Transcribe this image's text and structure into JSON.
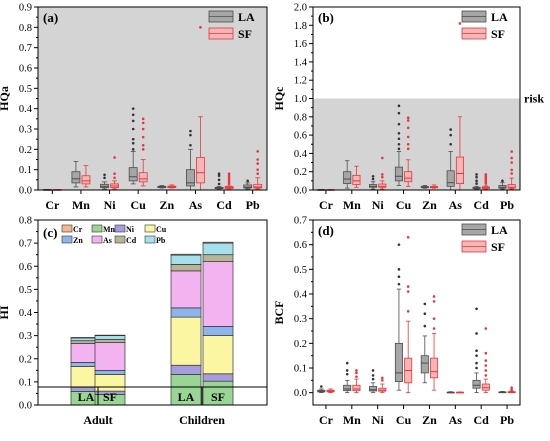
{
  "colors": {
    "la_fill": "#a6a6a6",
    "la_edge": "#4d4d4d",
    "sf_fill": "#f4b6b6",
    "sf_edge": "#e8363a",
    "risk_bg": "#d4d4d4",
    "marker_la": "#333333",
    "marker_sf": "#e8363a"
  },
  "chart_data": [
    {
      "id": "a",
      "type": "box",
      "panel_label": "(a)",
      "ylabel": "HQa",
      "ylim": [
        0,
        0.9
      ],
      "yticks": [
        "0.0",
        "0.1",
        "0.2",
        "0.3",
        "0.4",
        "0.5",
        "0.6",
        "0.7",
        "0.8",
        "0.9"
      ],
      "categories": [
        "Cr",
        "Mn",
        "Ni",
        "Cu",
        "Zn",
        "As",
        "Cd",
        "Pb"
      ],
      "shaded_background": true,
      "legend": [
        "LA",
        "SF"
      ],
      "series": [
        {
          "name": "LA",
          "boxes": [
            {
              "min": 0.0,
              "q1": 0.0,
              "med": 0.001,
              "q3": 0.002,
              "max": 0.003,
              "outliers": []
            },
            {
              "min": 0.015,
              "q1": 0.035,
              "med": 0.055,
              "q3": 0.09,
              "max": 0.14,
              "outliers": []
            },
            {
              "min": 0.005,
              "q1": 0.012,
              "med": 0.018,
              "q3": 0.028,
              "max": 0.04,
              "outliers": [
                0.06,
                0.075
              ]
            },
            {
              "min": 0.03,
              "q1": 0.045,
              "med": 0.065,
              "q3": 0.11,
              "max": 0.19,
              "outliers": [
                0.2,
                0.23,
                0.25,
                0.3,
                0.34,
                0.37,
                0.4
              ]
            },
            {
              "min": 0.01,
              "q1": 0.012,
              "med": 0.015,
              "q3": 0.018,
              "max": 0.022,
              "outliers": []
            },
            {
              "min": 0.0,
              "q1": 0.02,
              "med": 0.035,
              "q3": 0.1,
              "max": 0.2,
              "outliers": [
                0.22,
                0.27,
                0.29
              ]
            },
            {
              "min": 0.005,
              "q1": 0.007,
              "med": 0.01,
              "q3": 0.013,
              "max": 0.018,
              "outliers": [
                0.03,
                0.05,
                0.07,
                0.08
              ]
            },
            {
              "min": 0.005,
              "q1": 0.01,
              "med": 0.014,
              "q3": 0.025,
              "max": 0.035,
              "outliers": [
                0.045
              ]
            }
          ]
        },
        {
          "name": "SF",
          "boxes": [
            {
              "min": 0.0,
              "q1": 0.0,
              "med": 0.001,
              "q3": 0.002,
              "max": 0.003,
              "outliers": []
            },
            {
              "min": 0.015,
              "q1": 0.03,
              "med": 0.045,
              "q3": 0.07,
              "max": 0.12,
              "outliers": []
            },
            {
              "min": 0.005,
              "q1": 0.012,
              "med": 0.02,
              "q3": 0.03,
              "max": 0.045,
              "outliers": [
                0.06,
                0.08,
                0.16
              ]
            },
            {
              "min": 0.02,
              "q1": 0.04,
              "med": 0.055,
              "q3": 0.085,
              "max": 0.15,
              "outliers": [
                0.2,
                0.22,
                0.26,
                0.3,
                0.33,
                0.35
              ]
            },
            {
              "min": 0.01,
              "q1": 0.012,
              "med": 0.015,
              "q3": 0.019,
              "max": 0.025,
              "outliers": []
            },
            {
              "min": 0.0,
              "q1": 0.035,
              "med": 0.085,
              "q3": 0.16,
              "max": 0.36,
              "outliers": [
                0.8
              ]
            },
            {
              "min": 0.005,
              "q1": 0.007,
              "med": 0.012,
              "q3": 0.017,
              "max": 0.02,
              "outliers": [
                0.03,
                0.04,
                0.05,
                0.06,
                0.07,
                0.08
              ]
            },
            {
              "min": 0.005,
              "q1": 0.01,
              "med": 0.015,
              "q3": 0.028,
              "max": 0.06,
              "outliers": [
                0.08,
                0.1,
                0.13,
                0.15,
                0.19
              ]
            }
          ]
        }
      ]
    },
    {
      "id": "b",
      "type": "box",
      "panel_label": "(b)",
      "ylabel": "HQc",
      "ylim": [
        0,
        2.0
      ],
      "yticks": [
        "0.0",
        "0.2",
        "0.4",
        "0.6",
        "0.8",
        "1.0",
        "1.2",
        "1.4",
        "1.6",
        "1.8",
        "2.0"
      ],
      "categories": [
        "Cr",
        "Mn",
        "Ni",
        "Cu",
        "Zn",
        "As",
        "Cd",
        "Pb"
      ],
      "shaded_band": [
        0,
        1.0
      ],
      "risk_label": "risk",
      "legend": [
        "LA",
        "SF"
      ],
      "series": [
        {
          "name": "LA",
          "boxes": [
            {
              "min": 0.0,
              "q1": 0.0,
              "med": 0.002,
              "q3": 0.004,
              "max": 0.006,
              "outliers": []
            },
            {
              "min": 0.02,
              "q1": 0.07,
              "med": 0.12,
              "q3": 0.2,
              "max": 0.32,
              "outliers": []
            },
            {
              "min": 0.01,
              "q1": 0.03,
              "med": 0.04,
              "q3": 0.06,
              "max": 0.09,
              "outliers": [
                0.12,
                0.15
              ]
            },
            {
              "min": 0.05,
              "q1": 0.1,
              "med": 0.15,
              "q3": 0.25,
              "max": 0.42,
              "outliers": [
                0.45,
                0.5,
                0.56,
                0.62,
                0.72,
                0.84,
                0.92
              ]
            },
            {
              "min": 0.02,
              "q1": 0.025,
              "med": 0.03,
              "q3": 0.04,
              "max": 0.05,
              "outliers": []
            },
            {
              "min": 0.0,
              "q1": 0.04,
              "med": 0.08,
              "q3": 0.21,
              "max": 0.42,
              "outliers": [
                0.5,
                0.6,
                0.66
              ]
            },
            {
              "min": 0.01,
              "q1": 0.015,
              "med": 0.02,
              "q3": 0.03,
              "max": 0.04,
              "outliers": [
                0.07,
                0.1,
                0.14,
                0.17
              ]
            },
            {
              "min": 0.01,
              "q1": 0.02,
              "med": 0.03,
              "q3": 0.05,
              "max": 0.08,
              "outliers": [
                0.1
              ]
            }
          ]
        },
        {
          "name": "SF",
          "boxes": [
            {
              "min": 0.0,
              "q1": 0.0,
              "med": 0.002,
              "q3": 0.004,
              "max": 0.006,
              "outliers": []
            },
            {
              "min": 0.03,
              "q1": 0.06,
              "med": 0.1,
              "q3": 0.16,
              "max": 0.26,
              "outliers": []
            },
            {
              "min": 0.01,
              "q1": 0.03,
              "med": 0.04,
              "q3": 0.065,
              "max": 0.1,
              "outliers": [
                0.14,
                0.17,
                0.35
              ]
            },
            {
              "min": 0.04,
              "q1": 0.09,
              "med": 0.13,
              "q3": 0.2,
              "max": 0.33,
              "outliers": [
                0.45,
                0.5,
                0.58,
                0.68,
                0.76,
                0.79
              ]
            },
            {
              "min": 0.02,
              "q1": 0.025,
              "med": 0.03,
              "q3": 0.04,
              "max": 0.055,
              "outliers": []
            },
            {
              "min": 0.0,
              "q1": 0.07,
              "med": 0.18,
              "q3": 0.36,
              "max": 0.8,
              "outliers": [
                1.82
              ]
            },
            {
              "min": 0.01,
              "q1": 0.015,
              "med": 0.025,
              "q3": 0.035,
              "max": 0.045,
              "outliers": [
                0.07,
                0.09,
                0.11,
                0.13,
                0.15,
                0.17
              ]
            },
            {
              "min": 0.01,
              "q1": 0.02,
              "med": 0.03,
              "q3": 0.06,
              "max": 0.13,
              "outliers": [
                0.18,
                0.22,
                0.3,
                0.35,
                0.42
              ]
            }
          ]
        }
      ]
    },
    {
      "id": "c",
      "type": "stacked-bar",
      "panel_label": "(c)",
      "ylabel": "HI",
      "ylim": [
        0,
        0.8
      ],
      "yticks": [
        "0.0",
        "0.1",
        "0.2",
        "0.3",
        "0.4",
        "0.5",
        "0.6",
        "0.7",
        "0.8"
      ],
      "bars": [
        "LA",
        "SF",
        "LA",
        "SF"
      ],
      "groups": [
        "Adult",
        "Children"
      ],
      "legend_columns": [
        [
          "Cr",
          "Zn"
        ],
        [
          "Mn",
          "As"
        ],
        [
          "Ni",
          "Cd"
        ],
        [
          "Cu",
          "Pb"
        ]
      ],
      "stack_order": [
        "Mn",
        "Ni",
        "Cu",
        "Zn",
        "As",
        "Cd",
        "Pb",
        "Cr"
      ],
      "series_colors": {
        "Cr": "#f7b78c",
        "Mn": "#99d594",
        "Ni": "#a79ddc",
        "Cu": "#fbf6a2",
        "Zn": "#8fb4ec",
        "As": "#f3b3f0",
        "Cd": "#b8b596",
        "Pb": "#a6e0ec"
      },
      "values": {
        "Mn": [
          0.059,
          0.046,
          0.132,
          0.103
        ],
        "Ni": [
          0.018,
          0.014,
          0.04,
          0.032
        ],
        "Cu": [
          0.09,
          0.072,
          0.208,
          0.165
        ],
        "Zn": [
          0.017,
          0.018,
          0.04,
          0.04
        ],
        "As": [
          0.082,
          0.12,
          0.16,
          0.28
        ],
        "Cd": [
          0.012,
          0.014,
          0.028,
          0.03
        ],
        "Pb": [
          0.012,
          0.016,
          0.04,
          0.05
        ],
        "Cr": [
          0.002,
          0.002,
          0.004,
          0.004
        ]
      }
    },
    {
      "id": "d",
      "type": "box",
      "panel_label": "(d)",
      "ylabel": "BCF",
      "ylim": [
        -0.05,
        0.7
      ],
      "yticks": [
        "0.0",
        "0.1",
        "0.2",
        "0.3",
        "0.4",
        "0.5",
        "0.6",
        "0.7"
      ],
      "ytick_values": [
        0,
        0.1,
        0.2,
        0.3,
        0.4,
        0.5,
        0.6,
        0.7
      ],
      "categories": [
        "Cr",
        "Mn",
        "Ni",
        "Cu",
        "Zn",
        "As",
        "Cd",
        "Pb"
      ],
      "legend": [
        "LA",
        "SF"
      ],
      "series": [
        {
          "name": "LA",
          "boxes": [
            {
              "min": 0.0,
              "q1": 0.003,
              "med": 0.006,
              "q3": 0.01,
              "max": 0.015,
              "outliers": [
                0.025
              ]
            },
            {
              "min": 0.0,
              "q1": 0.008,
              "med": 0.015,
              "q3": 0.03,
              "max": 0.05,
              "outliers": [
                0.075,
                0.09,
                0.12
              ]
            },
            {
              "min": 0.0,
              "q1": 0.007,
              "med": 0.012,
              "q3": 0.025,
              "max": 0.04,
              "outliers": [
                0.055,
                0.07,
                0.09
              ]
            },
            {
              "min": 0.01,
              "q1": 0.045,
              "med": 0.08,
              "q3": 0.2,
              "max": 0.42,
              "outliers": [
                0.44,
                0.47,
                0.5,
                0.6
              ]
            },
            {
              "min": 0.04,
              "q1": 0.08,
              "med": 0.12,
              "q3": 0.15,
              "max": 0.23,
              "outliers": [
                0.27,
                0.32,
                0.36
              ]
            },
            {
              "min": 0.0,
              "q1": 0.0,
              "med": 0.001,
              "q3": 0.002,
              "max": 0.004,
              "outliers": []
            },
            {
              "min": 0.0,
              "q1": 0.018,
              "med": 0.03,
              "q3": 0.05,
              "max": 0.08,
              "outliers": [
                0.1,
                0.12,
                0.15,
                0.17,
                0.24,
                0.34
              ]
            },
            {
              "min": 0.0,
              "q1": 0.0,
              "med": 0.002,
              "q3": 0.003,
              "max": 0.005,
              "outliers": []
            }
          ]
        },
        {
          "name": "SF",
          "boxes": [
            {
              "min": 0.0,
              "q1": 0.003,
              "med": 0.006,
              "q3": 0.01,
              "max": 0.015,
              "outliers": []
            },
            {
              "min": 0.0,
              "q1": 0.008,
              "med": 0.015,
              "q3": 0.03,
              "max": 0.055,
              "outliers": [
                0.065,
                0.08,
                0.09
              ]
            },
            {
              "min": 0.0,
              "q1": 0.006,
              "med": 0.01,
              "q3": 0.018,
              "max": 0.035,
              "outliers": [
                0.05,
                0.06
              ]
            },
            {
              "min": 0.0,
              "q1": 0.04,
              "med": 0.09,
              "q3": 0.14,
              "max": 0.29,
              "outliers": [
                0.33,
                0.41,
                0.43,
                0.63
              ]
            },
            {
              "min": 0.01,
              "q1": 0.06,
              "med": 0.085,
              "q3": 0.14,
              "max": 0.24,
              "outliers": [
                0.26,
                0.3,
                0.37,
                0.39
              ]
            },
            {
              "min": 0.0,
              "q1": 0.0,
              "med": 0.001,
              "q3": 0.002,
              "max": 0.003,
              "outliers": []
            },
            {
              "min": 0.0,
              "q1": 0.01,
              "med": 0.02,
              "q3": 0.035,
              "max": 0.055,
              "outliers": [
                0.07,
                0.09,
                0.11,
                0.13,
                0.16,
                0.26
              ]
            },
            {
              "min": 0.0,
              "q1": 0.0,
              "med": 0.002,
              "q3": 0.004,
              "max": 0.006,
              "outliers": [
                0.012,
                0.02
              ]
            }
          ]
        }
      ]
    }
  ]
}
